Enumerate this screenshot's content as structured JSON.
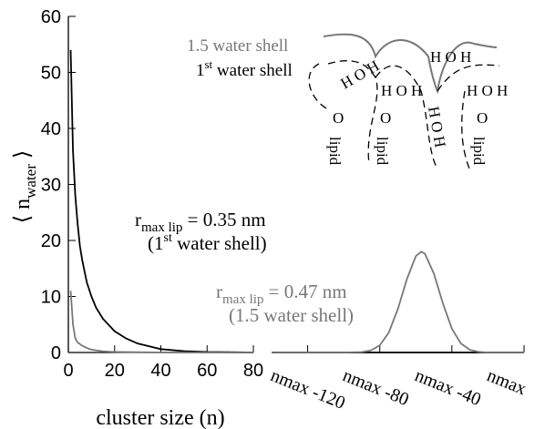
{
  "chart_data": {
    "type": "line",
    "ylim": [
      0,
      60
    ],
    "yticks": [
      0,
      10,
      20,
      30,
      40,
      50,
      60
    ],
    "y_label": {
      "text": "⟨ n",
      "sub": "water",
      "end": " ⟩"
    },
    "x_label": "cluster size (n)",
    "panels": [
      {
        "xlim": [
          0,
          80
        ],
        "xticks": [
          0,
          20,
          40,
          60,
          80
        ],
        "series": [
          {
            "color": "#000000",
            "x": [
              1,
              2,
              3,
              4,
              5,
              6,
              8,
              10,
              12,
              15,
              20,
              25,
              30,
              40,
              50,
              60,
              70,
              80
            ],
            "values": [
              54,
              36,
              28,
              23,
              19,
              16.5,
              12.5,
              10,
              8,
              6,
              3.8,
              2.5,
              1.6,
              0.6,
              0.25,
              0.1,
              0.05,
              0
            ]
          },
          {
            "color": "#777777",
            "x": [
              1,
              2,
              3,
              4,
              5,
              6,
              8,
              10,
              15,
              20,
              30,
              40,
              60,
              80
            ],
            "values": [
              11,
              5,
              2.5,
              1.8,
              1.5,
              1.2,
              0.8,
              0.5,
              0.2,
              0.1,
              0.05,
              0,
              0,
              0
            ]
          }
        ]
      },
      {
        "xlim": [
          -140,
          0
        ],
        "xticks": [
          {
            "value": -120,
            "label": "nmax -120"
          },
          {
            "value": -80,
            "label": "nmax -80"
          },
          {
            "value": -40,
            "label": "nmax -40"
          },
          {
            "value": 0,
            "label": "nmax"
          }
        ],
        "series": [
          {
            "color": "#000000",
            "x": [
              -140,
              0
            ],
            "values": [
              0,
              0
            ]
          },
          {
            "color": "#777777",
            "x": [
              -140,
              -100,
              -90,
              -85,
              -80,
              -75,
              -70,
              -65,
              -60,
              -57,
              -55,
              -50,
              -45,
              -40,
              -35,
              -30,
              -25,
              -20,
              0
            ],
            "values": [
              0,
              0,
              0.08,
              0.36,
              1.28,
              3.56,
              7.73,
              13.07,
              17.2,
              18,
              17.64,
              14.09,
              8.76,
              4.24,
              1.6,
              0.47,
              0.11,
              0,
              0
            ]
          }
        ]
      }
    ],
    "annotations": [
      {
        "r": "r",
        "sub": "max lip",
        "rest": " = 0.35 nm",
        "pre": "(1",
        "sup": "st",
        "post": " water shell)",
        "color": "#000000"
      },
      {
        "r": "r",
        "sub": "max lip",
        "rest": " = 0.47 nm",
        "pre": "(1.5 water shell)",
        "color": "#777777"
      }
    ],
    "inset": {
      "shell_15": "1.5 water shell",
      "shell_1": [
        "1",
        "st",
        " water shell"
      ],
      "water": [
        "H O H",
        "H O H",
        "H O H",
        "H O H",
        "H O H"
      ],
      "carbonyl": [
        "O",
        "O",
        "O"
      ],
      "lipid": [
        "lipid",
        "lipid",
        "lipid"
      ]
    }
  }
}
